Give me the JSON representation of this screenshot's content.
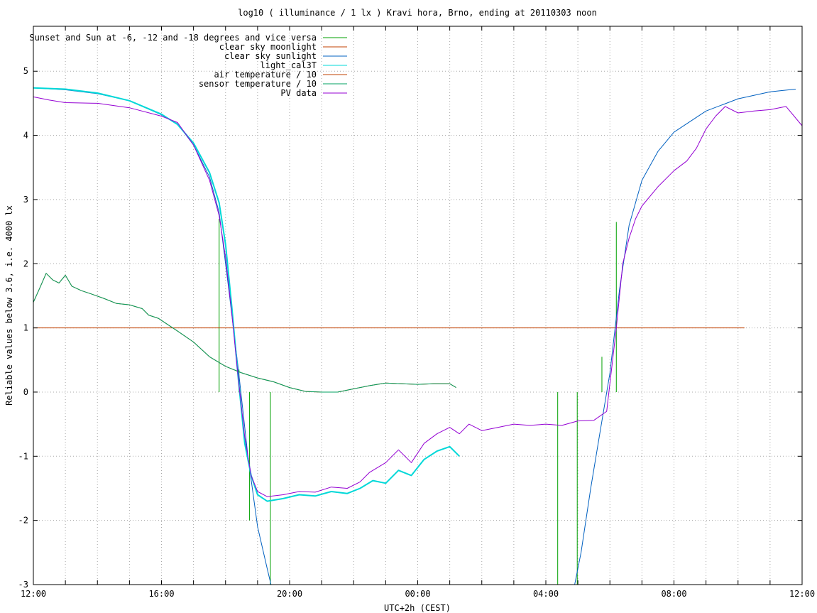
{
  "chart_data": {
    "type": "line",
    "title": "log10 ( illuminance / 1 lx ) Kravi hora, Brno, ending at 20110303 noon",
    "xlabel": "UTC+2h (CEST)",
    "ylabel": "Reliable values below 3.6, i.e. 4000 lx",
    "xlim": [
      0,
      24
    ],
    "ylim": [
      -3,
      5.7
    ],
    "grid": true,
    "legend_position": "top-left",
    "x_unit": "hours since 12:00",
    "xticks": [
      {
        "v": 0,
        "label": "12:00"
      },
      {
        "v": 1,
        "label": ""
      },
      {
        "v": 2,
        "label": ""
      },
      {
        "v": 3,
        "label": ""
      },
      {
        "v": 4,
        "label": "16:00"
      },
      {
        "v": 5,
        "label": ""
      },
      {
        "v": 6,
        "label": ""
      },
      {
        "v": 7,
        "label": ""
      },
      {
        "v": 8,
        "label": "20:00"
      },
      {
        "v": 9,
        "label": ""
      },
      {
        "v": 10,
        "label": ""
      },
      {
        "v": 11,
        "label": ""
      },
      {
        "v": 12,
        "label": "00:00"
      },
      {
        "v": 13,
        "label": ""
      },
      {
        "v": 14,
        "label": ""
      },
      {
        "v": 15,
        "label": ""
      },
      {
        "v": 16,
        "label": "04:00"
      },
      {
        "v": 17,
        "label": ""
      },
      {
        "v": 18,
        "label": ""
      },
      {
        "v": 19,
        "label": ""
      },
      {
        "v": 20,
        "label": "08:00"
      },
      {
        "v": 21,
        "label": ""
      },
      {
        "v": 22,
        "label": ""
      },
      {
        "v": 23,
        "label": ""
      },
      {
        "v": 24,
        "label": "12:00"
      }
    ],
    "yticks": [
      {
        "v": -3,
        "label": "-3"
      },
      {
        "v": -2,
        "label": "-2"
      },
      {
        "v": -1,
        "label": "-1"
      },
      {
        "v": 0,
        "label": "0"
      },
      {
        "v": 1,
        "label": "1"
      },
      {
        "v": 2,
        "label": "2"
      },
      {
        "v": 3,
        "label": "3"
      },
      {
        "v": 4,
        "label": "4"
      },
      {
        "v": 5,
        "label": "5"
      }
    ],
    "series": [
      {
        "name": "Sunset and Sun at -6, -12 and -18 degrees and vice versa",
        "color": "#00a000",
        "kind": "vlines",
        "lines": [
          {
            "x": 5.8,
            "y0": 0,
            "y1": 2.7
          },
          {
            "x": 6.42,
            "y0": 0,
            "y1": 0.35
          },
          {
            "x": 6.75,
            "y0": -2.0,
            "y1": 0
          },
          {
            "x": 7.4,
            "y0": -3.0,
            "y1": 0
          },
          {
            "x": 16.37,
            "y0": -3.0,
            "y1": 0
          },
          {
            "x": 16.98,
            "y0": -3.0,
            "y1": 0
          },
          {
            "x": 17.75,
            "y0": 0,
            "y1": 0.55
          },
          {
            "x": 18.2,
            "y0": 0,
            "y1": 2.65
          }
        ]
      },
      {
        "name": "clear sky moonlight",
        "color": "#c04000",
        "points": [
          [
            0,
            1.0
          ],
          [
            22.2,
            1.0
          ]
        ]
      },
      {
        "name": "clear sky sunlight",
        "color": "#0060c0",
        "points": [
          [
            0,
            4.74
          ],
          [
            1,
            4.71
          ],
          [
            2,
            4.65
          ],
          [
            3,
            4.54
          ],
          [
            4,
            4.32
          ],
          [
            4.5,
            4.18
          ],
          [
            5,
            3.85
          ],
          [
            5.5,
            3.35
          ],
          [
            5.8,
            2.8
          ],
          [
            6.1,
            1.6
          ],
          [
            6.4,
            0.35
          ],
          [
            6.7,
            -1.0
          ],
          [
            7.0,
            -2.1
          ],
          [
            7.3,
            -2.75
          ],
          [
            7.42,
            -3.0
          ]
        ]
      },
      {
        "name": "clear sky sunlight",
        "color": "#0060c0",
        "points": [
          [
            16.9,
            -3.0
          ],
          [
            17.1,
            -2.5
          ],
          [
            17.4,
            -1.5
          ],
          [
            17.7,
            -0.6
          ],
          [
            18.0,
            0.3
          ],
          [
            18.3,
            1.6
          ],
          [
            18.6,
            2.6
          ],
          [
            19.0,
            3.3
          ],
          [
            19.5,
            3.75
          ],
          [
            20,
            4.05
          ],
          [
            21,
            4.38
          ],
          [
            22,
            4.57
          ],
          [
            23,
            4.68
          ],
          [
            23.8,
            4.72
          ]
        ]
      },
      {
        "name": "light_cal3T",
        "color": "#00d8d8",
        "points": [
          [
            0,
            4.74
          ],
          [
            1,
            4.72
          ],
          [
            2,
            4.66
          ],
          [
            3,
            4.54
          ],
          [
            4,
            4.33
          ],
          [
            4.5,
            4.17
          ],
          [
            5,
            3.88
          ],
          [
            5.5,
            3.42
          ],
          [
            5.8,
            2.95
          ],
          [
            6.0,
            2.3
          ],
          [
            6.2,
            1.3
          ],
          [
            6.4,
            0.2
          ],
          [
            6.6,
            -0.8
          ],
          [
            6.8,
            -1.3
          ],
          [
            7.0,
            -1.6
          ],
          [
            7.3,
            -1.7
          ],
          [
            7.8,
            -1.66
          ],
          [
            8.3,
            -1.6
          ],
          [
            8.8,
            -1.62
          ],
          [
            9.3,
            -1.55
          ],
          [
            9.8,
            -1.58
          ],
          [
            10.2,
            -1.5
          ],
          [
            10.6,
            -1.38
          ],
          [
            11.0,
            -1.42
          ],
          [
            11.4,
            -1.22
          ],
          [
            11.8,
            -1.3
          ],
          [
            12.2,
            -1.05
          ],
          [
            12.6,
            -0.92
          ],
          [
            13.0,
            -0.85
          ],
          [
            13.3,
            -1.0
          ]
        ]
      },
      {
        "name": "air temperature / 10",
        "color": "#c04000",
        "points": [
          [
            0,
            1.4
          ],
          [
            0.2,
            1.62
          ],
          [
            0.4,
            1.85
          ],
          [
            0.6,
            1.75
          ],
          [
            0.8,
            1.7
          ],
          [
            1.0,
            1.82
          ],
          [
            1.2,
            1.65
          ],
          [
            1.5,
            1.58
          ],
          [
            1.8,
            1.53
          ],
          [
            2.2,
            1.46
          ],
          [
            2.6,
            1.38
          ],
          [
            3.0,
            1.36
          ],
          [
            3.4,
            1.3
          ],
          [
            3.6,
            1.2
          ],
          [
            3.9,
            1.15
          ],
          [
            4.2,
            1.05
          ],
          [
            4.5,
            0.95
          ],
          [
            5.0,
            0.78
          ],
          [
            5.5,
            0.55
          ],
          [
            6.0,
            0.4
          ],
          [
            6.5,
            0.3
          ],
          [
            7.0,
            0.22
          ],
          [
            7.5,
            0.16
          ],
          [
            8.0,
            0.07
          ],
          [
            8.5,
            0.01
          ],
          [
            9.0,
            0.0
          ],
          [
            9.5,
            0.0
          ],
          [
            10.0,
            0.05
          ],
          [
            10.5,
            0.1
          ],
          [
            11.0,
            0.14
          ],
          [
            11.5,
            0.13
          ],
          [
            12.0,
            0.12
          ],
          [
            12.5,
            0.13
          ],
          [
            13.0,
            0.13
          ],
          [
            13.2,
            0.07
          ]
        ]
      },
      {
        "name": "sensor temperature / 10",
        "color": "#00a060",
        "points": [
          [
            0,
            1.4
          ],
          [
            0.2,
            1.62
          ],
          [
            0.4,
            1.85
          ],
          [
            0.6,
            1.75
          ],
          [
            0.8,
            1.7
          ],
          [
            1.0,
            1.82
          ],
          [
            1.2,
            1.65
          ],
          [
            1.5,
            1.58
          ],
          [
            1.8,
            1.53
          ],
          [
            2.2,
            1.46
          ],
          [
            2.6,
            1.38
          ],
          [
            3.0,
            1.36
          ],
          [
            3.4,
            1.3
          ],
          [
            3.6,
            1.2
          ],
          [
            3.9,
            1.15
          ],
          [
            4.2,
            1.05
          ],
          [
            4.5,
            0.95
          ],
          [
            5.0,
            0.78
          ],
          [
            5.5,
            0.55
          ],
          [
            6.0,
            0.4
          ],
          [
            6.5,
            0.3
          ],
          [
            7.0,
            0.22
          ],
          [
            7.5,
            0.16
          ],
          [
            8.0,
            0.07
          ],
          [
            8.5,
            0.01
          ],
          [
            9.0,
            0.0
          ],
          [
            9.5,
            0.0
          ],
          [
            10.0,
            0.05
          ],
          [
            10.5,
            0.1
          ],
          [
            11.0,
            0.14
          ],
          [
            11.5,
            0.13
          ],
          [
            12.0,
            0.12
          ],
          [
            12.5,
            0.13
          ],
          [
            13.0,
            0.13
          ],
          [
            13.2,
            0.07
          ]
        ]
      },
      {
        "name": "PV data",
        "color": "#9400d3",
        "points": [
          [
            0,
            4.6
          ],
          [
            0.5,
            4.55
          ],
          [
            1,
            4.51
          ],
          [
            2,
            4.5
          ],
          [
            3,
            4.43
          ],
          [
            4,
            4.3
          ],
          [
            4.5,
            4.2
          ],
          [
            5,
            3.85
          ],
          [
            5.5,
            3.3
          ],
          [
            5.8,
            2.75
          ],
          [
            6.0,
            2.1
          ],
          [
            6.2,
            1.2
          ],
          [
            6.4,
            0.2
          ],
          [
            6.6,
            -0.7
          ],
          [
            6.8,
            -1.3
          ],
          [
            7.0,
            -1.55
          ],
          [
            7.3,
            -1.63
          ],
          [
            7.8,
            -1.6
          ],
          [
            8.3,
            -1.55
          ],
          [
            8.8,
            -1.56
          ],
          [
            9.3,
            -1.48
          ],
          [
            9.8,
            -1.5
          ],
          [
            10.2,
            -1.4
          ],
          [
            10.5,
            -1.25
          ],
          [
            11.0,
            -1.1
          ],
          [
            11.4,
            -0.9
          ],
          [
            11.8,
            -1.1
          ],
          [
            12.2,
            -0.8
          ],
          [
            12.6,
            -0.65
          ],
          [
            13.0,
            -0.55
          ],
          [
            13.3,
            -0.65
          ],
          [
            13.6,
            -0.5
          ],
          [
            14.0,
            -0.6
          ],
          [
            14.5,
            -0.55
          ],
          [
            15.0,
            -0.5
          ],
          [
            15.5,
            -0.52
          ],
          [
            16.0,
            -0.5
          ],
          [
            16.5,
            -0.52
          ],
          [
            17.0,
            -0.45
          ],
          [
            17.5,
            -0.44
          ],
          [
            17.9,
            -0.3
          ],
          [
            18.2,
            1.0
          ],
          [
            18.4,
            2.0
          ],
          [
            18.6,
            2.4
          ],
          [
            18.8,
            2.7
          ],
          [
            19.0,
            2.9
          ],
          [
            19.5,
            3.2
          ],
          [
            20.0,
            3.45
          ],
          [
            20.4,
            3.6
          ],
          [
            20.7,
            3.8
          ],
          [
            21.0,
            4.1
          ],
          [
            21.3,
            4.3
          ],
          [
            21.6,
            4.45
          ],
          [
            22.0,
            4.35
          ],
          [
            22.5,
            4.38
          ],
          [
            23.0,
            4.4
          ],
          [
            23.5,
            4.45
          ],
          [
            24.0,
            4.15
          ]
        ]
      }
    ]
  }
}
